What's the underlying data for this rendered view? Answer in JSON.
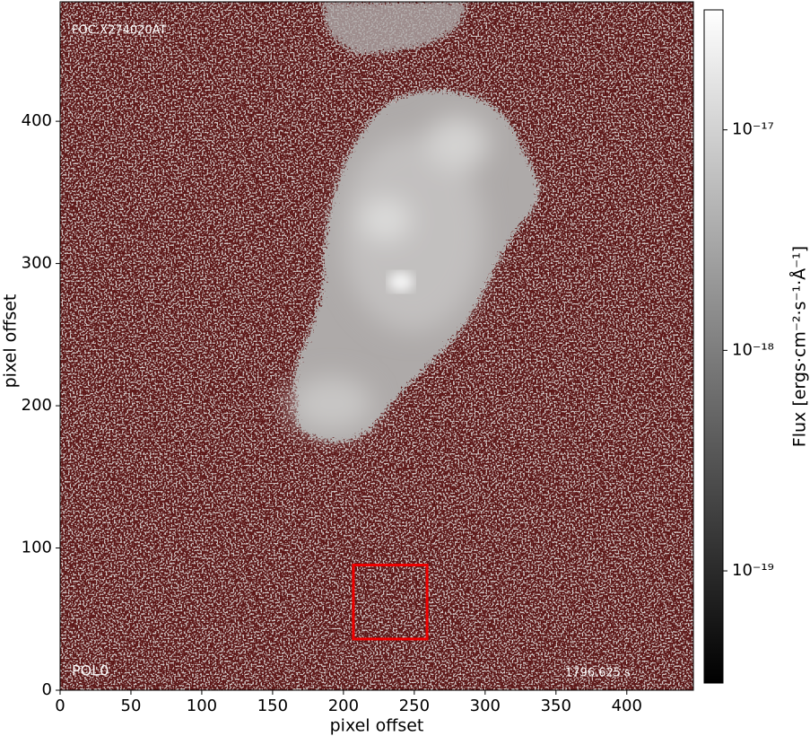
{
  "chart_data": {
    "type": "image",
    "xlabel": "pixel offset",
    "ylabel": "pixel offset",
    "xlim": [
      0,
      447
    ],
    "ylim": [
      0,
      484
    ],
    "xticks": [
      0,
      50,
      100,
      150,
      200,
      250,
      300,
      350,
      400
    ],
    "yticks": [
      0,
      100,
      200,
      300,
      400
    ],
    "annotations": [
      "FOC:X274020AT",
      "POL0",
      "1796.625 s"
    ],
    "regions": [
      {
        "x": [
          207,
          259
        ],
        "y": [
          36,
          88
        ],
        "color": "#ee0000"
      }
    ],
    "colorbar": {
      "label": "Flux [ergs·cm⁻²·s⁻¹·Å⁻¹]",
      "scale": "log",
      "lim": [
        3.1e-20,
        3.5e-17
      ],
      "ticks": [
        {
          "value": 1e-17,
          "label": "10⁻¹⁷"
        },
        {
          "value": 1e-18,
          "label": "10⁻¹⁸"
        },
        {
          "value": 1e-19,
          "label": "10⁻¹⁹"
        }
      ]
    }
  }
}
